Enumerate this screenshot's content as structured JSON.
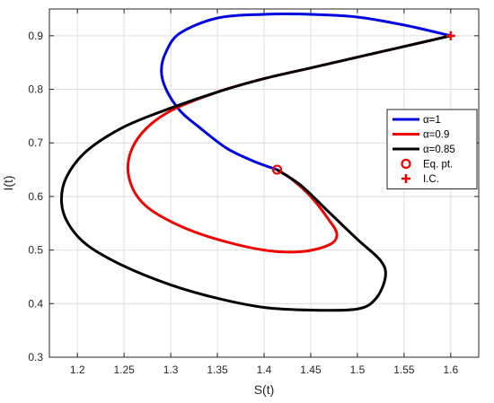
{
  "chart_data": {
    "type": "line",
    "xlabel": "S(t)",
    "ylabel": "I(t)",
    "xlim": [
      1.17,
      1.63
    ],
    "ylim": [
      0.3,
      0.95
    ],
    "xticks": [
      "1.2",
      "1.25",
      "1.3",
      "1.35",
      "1.4",
      "1.45",
      "1.5",
      "1.55",
      "1.6"
    ],
    "yticks": [
      "0.3",
      "0.4",
      "0.5",
      "0.6",
      "0.7",
      "0.8",
      "0.9"
    ],
    "grid": true,
    "legend_position": "right",
    "series": [
      {
        "name": "α=1",
        "color": "#0000dd",
        "x": [
          1.6,
          1.55,
          1.5,
          1.45,
          1.4,
          1.35,
          1.31,
          1.295,
          1.29,
          1.295,
          1.31,
          1.33,
          1.36,
          1.39,
          1.414
        ],
        "y": [
          0.9,
          0.92,
          0.935,
          0.94,
          0.94,
          0.933,
          0.905,
          0.87,
          0.835,
          0.8,
          0.76,
          0.73,
          0.69,
          0.665,
          0.65
        ]
      },
      {
        "name": "α=0.9",
        "color": "#ee0000",
        "x": [
          1.6,
          1.55,
          1.5,
          1.45,
          1.4,
          1.35,
          1.3,
          1.27,
          1.255,
          1.258,
          1.275,
          1.31,
          1.35,
          1.4,
          1.44,
          1.47,
          1.478,
          1.468,
          1.45,
          1.43,
          1.414
        ],
        "y": [
          0.9,
          0.88,
          0.86,
          0.84,
          0.82,
          0.795,
          0.76,
          0.72,
          0.67,
          0.62,
          0.58,
          0.545,
          0.52,
          0.5,
          0.497,
          0.51,
          0.53,
          0.56,
          0.6,
          0.632,
          0.65
        ]
      },
      {
        "name": "α=0.85",
        "color": "#000000",
        "x": [
          1.6,
          1.55,
          1.5,
          1.45,
          1.4,
          1.35,
          1.3,
          1.25,
          1.21,
          1.188,
          1.183,
          1.19,
          1.21,
          1.25,
          1.3,
          1.35,
          1.4,
          1.45,
          1.5,
          1.52,
          1.53,
          1.525,
          1.5,
          1.47,
          1.44,
          1.414
        ],
        "y": [
          0.9,
          0.88,
          0.86,
          0.84,
          0.82,
          0.795,
          0.765,
          0.73,
          0.685,
          0.635,
          0.59,
          0.55,
          0.51,
          0.47,
          0.435,
          0.41,
          0.393,
          0.388,
          0.39,
          0.41,
          0.45,
          0.48,
          0.52,
          0.57,
          0.62,
          0.65
        ]
      }
    ],
    "markers": [
      {
        "name": "Eq. pt.",
        "x": 1.414,
        "y": 0.65,
        "shape": "circle",
        "color": "#ee0000"
      },
      {
        "name": "I.C.",
        "x": 1.6,
        "y": 0.9,
        "shape": "plus",
        "color": "#ee0000"
      }
    ]
  }
}
